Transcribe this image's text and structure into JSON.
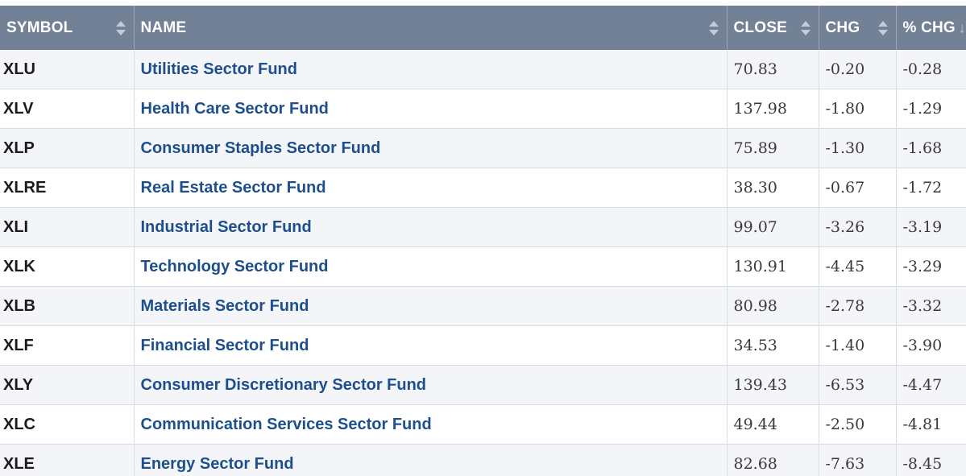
{
  "table": {
    "headers": {
      "symbol": "SYMBOL",
      "name": "NAME",
      "close": "CLOSE",
      "chg": "CHG",
      "pct_chg": "% CHG"
    },
    "sort": {
      "column": "% CHG",
      "direction": "descending"
    },
    "colors": {
      "header_bg": "#728196",
      "header_text": "#ffffff",
      "link": "#1d4f8c",
      "row_alt": "#f3f5f8"
    },
    "rows": [
      {
        "symbol": "XLU",
        "name": "Utilities Sector Fund",
        "close": "70.83",
        "chg": "-0.20",
        "pct_chg": "-0.28"
      },
      {
        "symbol": "XLV",
        "name": "Health Care Sector Fund",
        "close": "137.98",
        "chg": "-1.80",
        "pct_chg": "-1.29"
      },
      {
        "symbol": "XLP",
        "name": "Consumer Staples Sector Fund",
        "close": "75.89",
        "chg": "-1.30",
        "pct_chg": "-1.68"
      },
      {
        "symbol": "XLRE",
        "name": "Real Estate Sector Fund",
        "close": "38.30",
        "chg": "-0.67",
        "pct_chg": "-1.72"
      },
      {
        "symbol": "XLI",
        "name": "Industrial Sector Fund",
        "close": "99.07",
        "chg": "-3.26",
        "pct_chg": "-3.19"
      },
      {
        "symbol": "XLK",
        "name": "Technology Sector Fund",
        "close": "130.91",
        "chg": "-4.45",
        "pct_chg": "-3.29"
      },
      {
        "symbol": "XLB",
        "name": "Materials Sector Fund",
        "close": "80.98",
        "chg": "-2.78",
        "pct_chg": "-3.32"
      },
      {
        "symbol": "XLF",
        "name": "Financial Sector Fund",
        "close": "34.53",
        "chg": "-1.40",
        "pct_chg": "-3.90"
      },
      {
        "symbol": "XLY",
        "name": "Consumer Discretionary Sector Fund",
        "close": "139.43",
        "chg": "-6.53",
        "pct_chg": "-4.47"
      },
      {
        "symbol": "XLC",
        "name": "Communication Services Sector Fund",
        "close": "49.44",
        "chg": "-2.50",
        "pct_chg": "-4.81"
      },
      {
        "symbol": "XLE",
        "name": "Energy Sector Fund",
        "close": "82.68",
        "chg": "-7.63",
        "pct_chg": "-8.45"
      }
    ]
  }
}
